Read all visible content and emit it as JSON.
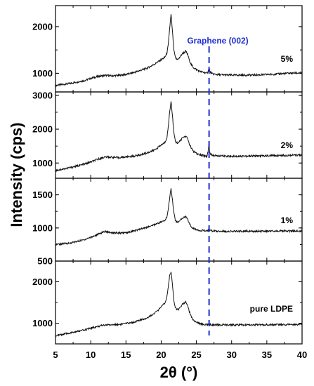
{
  "chart_data": {
    "type": "line",
    "xlabel": "2θ (°)",
    "ylabel": "Intensity (cps)",
    "xlim": [
      5,
      40
    ],
    "x_ticks": [
      "5",
      "10",
      "15",
      "20",
      "25",
      "30",
      "35",
      "40"
    ],
    "reference_line": {
      "label": "Graphene (002)",
      "x": 26.8,
      "color": "#1f2fd0",
      "style": "dashed"
    },
    "line_color": "#111111",
    "panels": [
      {
        "label": "5%",
        "ylim": [
          600,
          2450
        ],
        "y_ticks": [
          {
            "value": 1000,
            "label": "1000"
          },
          {
            "value": 2000,
            "label": "2000"
          }
        ],
        "x": [
          5,
          7,
          9,
          10,
          11,
          12,
          13,
          14,
          15,
          16,
          17,
          18,
          19,
          19.5,
          20,
          20.5,
          20.8,
          21,
          21.2,
          21.4,
          21.6,
          21.8,
          22,
          22.2,
          22.5,
          23,
          23.5,
          23.8,
          24,
          24.3,
          24.6,
          25,
          25.5,
          26,
          26.5,
          26.7,
          26.8,
          26.9,
          27.2,
          28,
          30,
          32,
          34,
          36,
          38,
          40
        ],
        "y": [
          740,
          780,
          840,
          890,
          930,
          955,
          945,
          955,
          975,
          1010,
          1060,
          1110,
          1190,
          1240,
          1290,
          1340,
          1420,
          1600,
          1950,
          2260,
          1900,
          1500,
          1340,
          1300,
          1310,
          1420,
          1470,
          1390,
          1280,
          1180,
          1120,
          1080,
          1040,
          1020,
          1000,
          1060,
          1140,
          1040,
          990,
          970,
          960,
          960,
          965,
          980,
          1000,
          1010
        ]
      },
      {
        "label": "2%",
        "ylim": [
          550,
          3100
        ],
        "y_ticks": [
          {
            "value": 1000,
            "label": "1000"
          },
          {
            "value": 2000,
            "label": "2000"
          },
          {
            "value": 3000,
            "label": "3000"
          }
        ],
        "x": [
          5,
          7,
          9,
          10,
          11,
          12,
          13,
          14,
          15,
          16,
          17,
          18,
          19,
          19.5,
          20,
          20.5,
          20.8,
          21,
          21.2,
          21.4,
          21.6,
          21.8,
          22,
          22.2,
          22.5,
          23,
          23.5,
          23.8,
          24,
          24.3,
          24.6,
          25,
          25.5,
          26,
          26.5,
          26.7,
          26.8,
          26.9,
          27.2,
          28,
          30,
          32,
          34,
          36,
          38,
          40
        ],
        "y": [
          780,
          860,
          960,
          1030,
          1110,
          1180,
          1170,
          1160,
          1180,
          1200,
          1240,
          1300,
          1380,
          1450,
          1530,
          1600,
          1740,
          2050,
          2500,
          2830,
          2400,
          1900,
          1650,
          1600,
          1600,
          1740,
          1800,
          1700,
          1560,
          1430,
          1340,
          1280,
          1240,
          1220,
          1200,
          1400,
          1600,
          1300,
          1230,
          1210,
          1200,
          1210,
          1210,
          1220,
          1230,
          1240
        ]
      },
      {
        "label": "1%",
        "ylim": [
          500,
          1750
        ],
        "y_ticks": [
          {
            "value": 500,
            "label": "500"
          },
          {
            "value": 1000,
            "label": "1000"
          },
          {
            "value": 1500,
            "label": "1500"
          }
        ],
        "x": [
          5,
          7,
          9,
          10,
          11,
          12,
          13,
          14,
          15,
          16,
          17,
          18,
          19,
          19.5,
          20,
          20.5,
          20.8,
          21,
          21.2,
          21.4,
          21.6,
          21.8,
          22,
          22.2,
          22.5,
          23,
          23.5,
          23.8,
          24,
          24.3,
          24.6,
          25,
          25.5,
          26,
          26.5,
          26.7,
          26.8,
          26.9,
          27.2,
          28,
          30,
          32,
          34,
          36,
          38,
          40
        ],
        "y": [
          750,
          770,
          820,
          860,
          900,
          950,
          930,
          920,
          930,
          950,
          980,
          1010,
          1050,
          1070,
          1090,
          1110,
          1160,
          1280,
          1450,
          1600,
          1430,
          1230,
          1120,
          1090,
          1090,
          1150,
          1170,
          1120,
          1070,
          1010,
          990,
          975,
          965,
          960,
          955,
          960,
          965,
          958,
          955,
          950,
          948,
          950,
          950,
          955,
          955,
          955
        ]
      },
      {
        "label": "pure LDPE",
        "ylim": [
          500,
          2500
        ],
        "y_ticks": [
          {
            "value": 1000,
            "label": "1000"
          },
          {
            "value": 2000,
            "label": "2000"
          }
        ],
        "x": [
          5,
          7,
          9,
          10,
          11,
          12,
          13,
          14,
          15,
          16,
          17,
          18,
          19,
          19.5,
          20,
          20.5,
          20.8,
          21,
          21.2,
          21.4,
          21.6,
          21.8,
          22,
          22.2,
          22.5,
          23,
          23.5,
          23.8,
          24,
          24.3,
          24.6,
          25,
          25.5,
          26,
          26.5,
          26.7,
          26.8,
          26.9,
          27.2,
          28,
          30,
          32,
          34,
          36,
          38,
          40
        ],
        "y": [
          700,
          760,
          830,
          880,
          920,
          960,
          960,
          970,
          990,
          1020,
          1070,
          1130,
          1230,
          1300,
          1390,
          1480,
          1620,
          1880,
          2150,
          2240,
          1950,
          1550,
          1380,
          1340,
          1330,
          1450,
          1520,
          1420,
          1280,
          1150,
          1070,
          1020,
          990,
          975,
          965,
          968,
          970,
          966,
          962,
          960,
          958,
          960,
          962,
          965,
          968,
          970
        ]
      }
    ]
  }
}
